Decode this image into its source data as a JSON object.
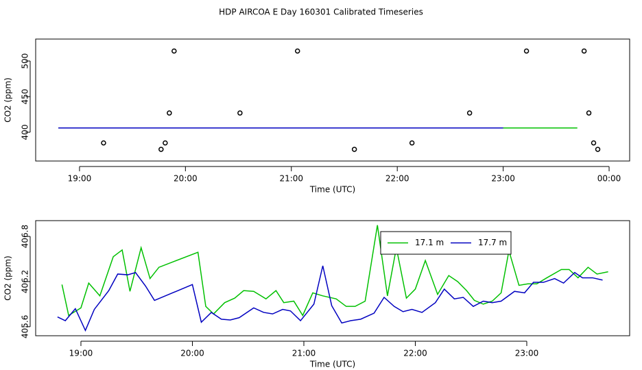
{
  "chart_data": [
    {
      "type": "scatter",
      "title": "HDP AIRCOA E  Day 160301  Calibrated Timeseries",
      "xlabel": "Time (UTC)",
      "ylabel": "CO2 (ppm)",
      "xlim": [
        18.586,
        24.194
      ],
      "xticks": [
        {
          "value": 19,
          "label": "19:00"
        },
        {
          "value": 20,
          "label": "20:00"
        },
        {
          "value": 21,
          "label": "21:00"
        },
        {
          "value": 22,
          "label": "22:00"
        },
        {
          "value": 23,
          "label": "23:00"
        },
        {
          "value": 24,
          "label": "00:00"
        }
      ],
      "ylim": [
        359.6,
        530.8
      ],
      "yticks": [
        400,
        450,
        500
      ],
      "points": {
        "color": "#000000",
        "x": [
          19.227,
          19.77,
          19.809,
          19.848,
          19.893,
          20.515,
          21.058,
          21.595,
          22.139,
          22.683,
          23.22,
          23.764,
          23.809,
          23.854,
          23.893
        ],
        "values": [
          385,
          376,
          385,
          427,
          514,
          427,
          514,
          376,
          385,
          427,
          514,
          514,
          427,
          385,
          376
        ]
      },
      "series": [
        {
          "color": "#00c000",
          "x": [
            18.8,
            23.7
          ],
          "values": [
            406,
            406
          ]
        },
        {
          "color": "#0000c0",
          "x": [
            18.8,
            23.0
          ],
          "values": [
            406,
            406
          ]
        }
      ]
    },
    {
      "type": "line",
      "xlabel": "Time (UTC)",
      "ylabel": "CO2 (ppm)",
      "xlim": [
        18.594,
        23.923
      ],
      "xticks": [
        {
          "value": 19,
          "label": "19:00"
        },
        {
          "value": 20,
          "label": "20:00"
        },
        {
          "value": 21,
          "label": "21:00"
        },
        {
          "value": 22,
          "label": "22:00"
        },
        {
          "value": 23,
          "label": "23:00"
        }
      ],
      "ylim": [
        405.48,
        407.01
      ],
      "yticks": [
        405.6,
        406.2,
        406.8
      ],
      "legend": "top-right",
      "series": [
        {
          "name": "17.1 m",
          "color": "#00c000",
          "x": [
            18.83,
            18.89,
            19.0,
            19.07,
            19.17,
            19.29,
            19.37,
            19.44,
            19.54,
            19.62,
            19.7,
            20.05,
            20.12,
            20.19,
            20.29,
            20.38,
            20.46,
            20.55,
            20.66,
            20.75,
            20.82,
            20.91,
            20.99,
            21.08,
            21.17,
            21.29,
            21.38,
            21.46,
            21.55,
            21.66,
            21.75,
            21.83,
            21.92,
            22.0,
            22.09,
            22.2,
            22.3,
            22.38,
            22.46,
            22.53,
            22.61,
            22.69,
            22.77,
            22.84,
            22.93,
            23.01,
            23.09,
            23.18,
            23.31,
            23.38,
            23.46,
            23.55,
            23.63,
            23.73
          ],
          "values": [
            406.16,
            405.75,
            405.85,
            406.18,
            406.01,
            406.53,
            406.62,
            406.07,
            406.65,
            406.24,
            406.39,
            406.59,
            405.87,
            405.77,
            405.92,
            405.98,
            406.08,
            406.07,
            405.97,
            406.08,
            405.92,
            405.94,
            405.75,
            406.05,
            406.01,
            405.97,
            405.87,
            405.87,
            405.94,
            406.95,
            406.01,
            406.65,
            405.98,
            406.1,
            406.48,
            406.03,
            406.28,
            406.2,
            406.08,
            405.95,
            405.9,
            405.94,
            406.05,
            406.61,
            406.15,
            406.17,
            406.17,
            406.25,
            406.36,
            406.36,
            406.25,
            406.39,
            406.3,
            406.33
          ]
        },
        {
          "name": "17.7 m",
          "color": "#0000c0",
          "x": [
            18.79,
            18.86,
            18.95,
            19.04,
            19.12,
            19.25,
            19.33,
            19.42,
            19.49,
            19.58,
            19.66,
            20.0,
            20.08,
            20.17,
            20.26,
            20.34,
            20.42,
            20.55,
            20.64,
            20.72,
            20.81,
            20.88,
            20.97,
            21.09,
            21.17,
            21.25,
            21.34,
            21.42,
            21.51,
            21.63,
            21.72,
            21.81,
            21.89,
            21.97,
            22.06,
            22.18,
            22.26,
            22.35,
            22.43,
            22.52,
            22.61,
            22.69,
            22.77,
            22.89,
            22.98,
            23.06,
            23.15,
            23.25,
            23.33,
            23.43,
            23.5,
            23.59,
            23.68
          ],
          "values": [
            405.73,
            405.68,
            405.84,
            405.55,
            405.83,
            406.08,
            406.3,
            406.29,
            406.32,
            406.14,
            405.95,
            406.16,
            405.66,
            405.79,
            405.7,
            405.69,
            405.72,
            405.85,
            405.79,
            405.77,
            405.83,
            405.81,
            405.68,
            405.9,
            406.41,
            405.88,
            405.65,
            405.68,
            405.7,
            405.78,
            405.99,
            405.87,
            405.8,
            405.83,
            405.79,
            405.92,
            406.1,
            405.97,
            405.99,
            405.87,
            405.94,
            405.92,
            405.94,
            406.07,
            406.05,
            406.19,
            406.19,
            406.24,
            406.18,
            406.32,
            406.25,
            406.25,
            406.22
          ]
        }
      ]
    }
  ]
}
